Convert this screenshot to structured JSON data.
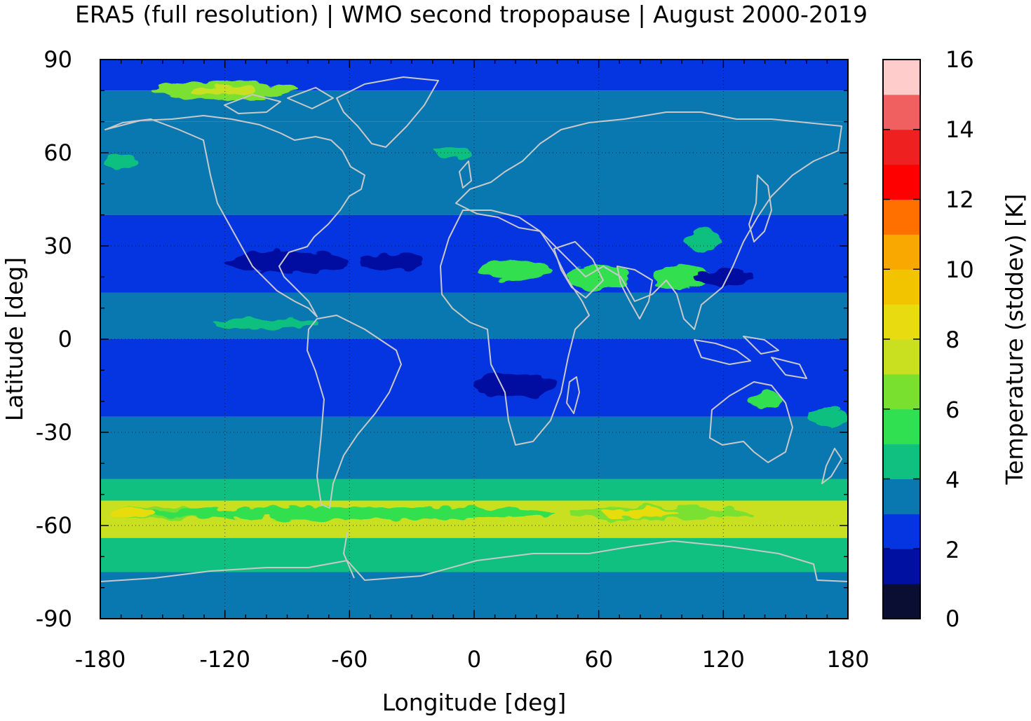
{
  "title": "ERA5 (full resolution) | WMO second tropopause | August 2000-2019",
  "map": {
    "xlabel": "Longitude [deg]",
    "ylabel": "Latitude [deg]",
    "xlim": [
      -180,
      180
    ],
    "ylim": [
      -90,
      90
    ],
    "x_ticks": [
      "-180",
      "-120",
      "-60",
      "0",
      "60",
      "120",
      "180"
    ],
    "y_ticks": [
      "90",
      "60",
      "30",
      "0",
      "-30",
      "-60",
      "-90"
    ],
    "grid": true,
    "coastline_color": "#c8c8c8"
  },
  "colorbar": {
    "label": "Temperature (stddev) [K]",
    "ticks": [
      "16",
      "14",
      "12",
      "10",
      "8",
      "6",
      "4",
      "2",
      "0"
    ],
    "range": [
      0,
      16
    ],
    "step": 1,
    "colors": [
      "#0b0e33",
      "#0010a0",
      "#0535e0",
      "#0a78b0",
      "#10c080",
      "#30e050",
      "#7ae030",
      "#c8e020",
      "#e8dc10",
      "#f2c400",
      "#f8a800",
      "#ff7000",
      "#ff0000",
      "#ef2020",
      "#f06060",
      "#ffcccc"
    ]
  },
  "chart_data": {
    "type": "heatmap",
    "variable": "Temperature (stddev) [K]",
    "approx_zonal_bands": [
      {
        "lat_range": [
          80,
          90
        ],
        "value_K": 2
      },
      {
        "lat_range": [
          70,
          80
        ],
        "value_K": 3.5
      },
      {
        "lat_range": [
          60,
          70
        ],
        "value_K": 3
      },
      {
        "lat_range": [
          40,
          60
        ],
        "value_K": 3.5
      },
      {
        "lat_range": [
          15,
          40
        ],
        "value_K": 2
      },
      {
        "lat_range": [
          0,
          15
        ],
        "value_K": 3.5
      },
      {
        "lat_range": [
          -25,
          0
        ],
        "value_K": 2
      },
      {
        "lat_range": [
          -45,
          -25
        ],
        "value_K": 3.5
      },
      {
        "lat_range": [
          -52,
          -45
        ],
        "value_K": 4.5
      },
      {
        "lat_range": [
          -64,
          -52
        ],
        "value_K": 7
      },
      {
        "lat_range": [
          -75,
          -64
        ],
        "value_K": 4.5
      },
      {
        "lat_range": [
          -90,
          -75
        ],
        "value_K": 3
      }
    ],
    "notable_features": [
      {
        "region": "Southern Ocean near -56 lat, -170 lon",
        "value_K": 8.5
      },
      {
        "region": "Southern Indian Ocean near -56 lat, 90 lon",
        "value_K": 8.5
      },
      {
        "region": "Arctic Canada near 80 lat, -120 lon",
        "value_K": 7
      },
      {
        "region": "North Africa / Arabia / South Asia 15-30 lat",
        "value_K": 5
      }
    ]
  }
}
